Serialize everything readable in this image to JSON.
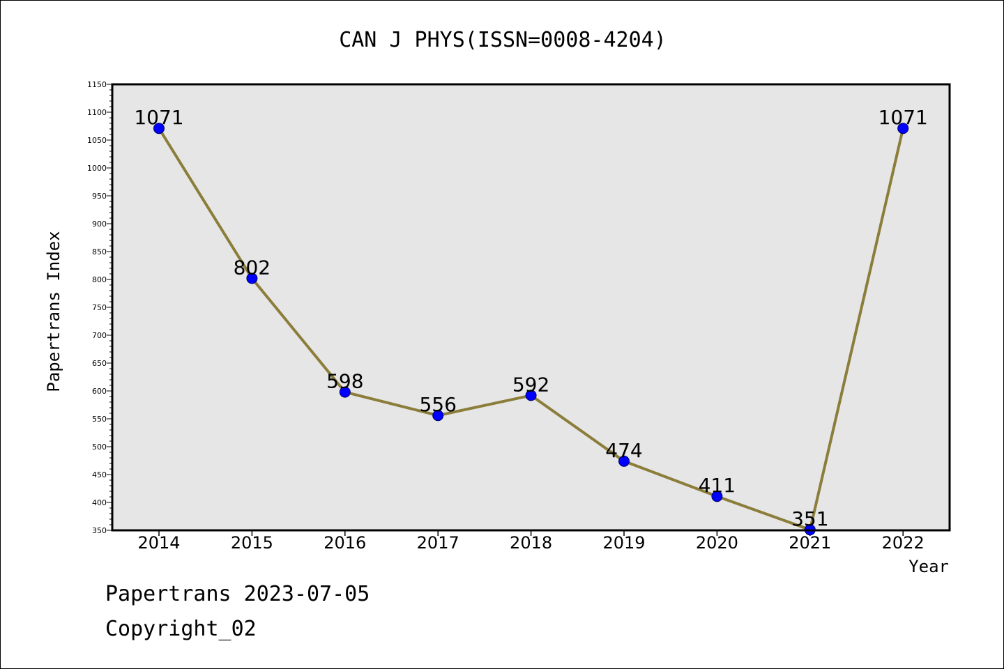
{
  "chart_data": {
    "type": "line",
    "title": "CAN J PHYS(ISSN=0008-4204)",
    "xlabel": "Year",
    "ylabel": "Papertrans Index",
    "categories": [
      "2014",
      "2015",
      "2016",
      "2017",
      "2018",
      "2019",
      "2020",
      "2021",
      "2022"
    ],
    "series": [
      {
        "values": [
          1071,
          802,
          598,
          556,
          592,
          474,
          411,
          351,
          1071
        ],
        "line_color": "#8b7d3a",
        "marker_color": "#0000ff"
      }
    ],
    "ylim": [
      350,
      1150
    ],
    "y_major_ticks": [
      350,
      400,
      450,
      500,
      550,
      600,
      650,
      700,
      750,
      800,
      850,
      900,
      950,
      1000,
      1050,
      1100,
      1150
    ],
    "y_minor_step": 10,
    "plot_background": "#e6e6e6",
    "grid": false,
    "data_labels": true
  },
  "footer": {
    "date_line": "Papertrans 2023-07-05",
    "copyright_line": "Copyright_02"
  }
}
